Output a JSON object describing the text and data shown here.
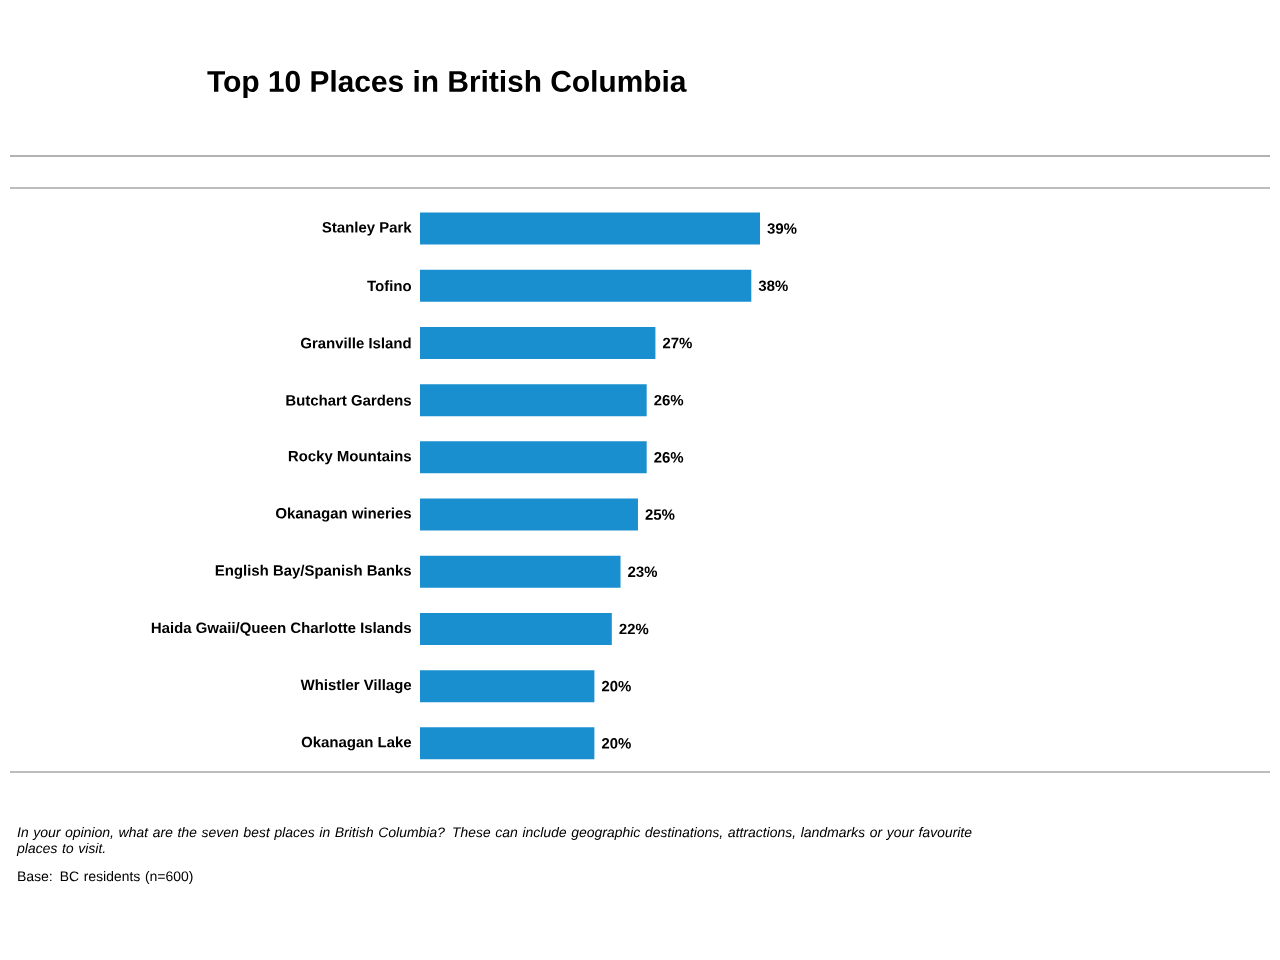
{
  "chart_data": {
    "type": "bar",
    "orientation": "horizontal",
    "title": "Top 10 Places in British Columbia",
    "categories": [
      "Stanley Park",
      "Tofino",
      "Granville Island",
      "Butchart Gardens",
      "Rocky Mountains",
      "Okanagan wineries",
      "English Bay/Spanish Banks",
      "Haida Gwaii/Queen Charlotte Islands",
      "Whistler Village",
      "Okanagan Lake"
    ],
    "values": [
      39,
      38,
      27,
      26,
      26,
      25,
      23,
      22,
      20,
      20
    ],
    "value_labels": [
      "39%",
      "38%",
      "27%",
      "26%",
      "26%",
      "25%",
      "23%",
      "22%",
      "20%",
      "20%"
    ],
    "color": "#1a8fcf",
    "annotations": [
      "In your opinion, what are the seven best places in British Columbia? These can include geographic destinations, attractions, landmarks or your favourite places to visit.",
      "Base: BC residents (n=600)"
    ]
  }
}
